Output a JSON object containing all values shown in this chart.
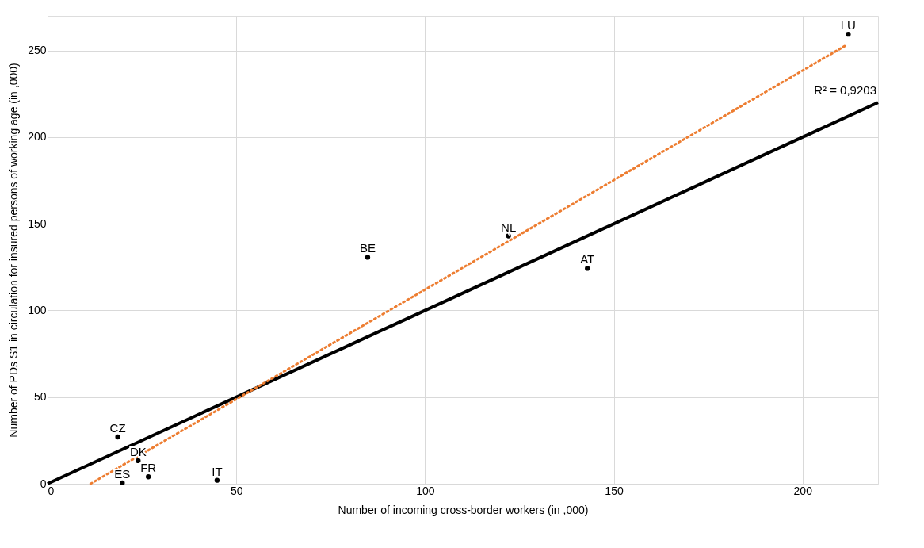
{
  "chart_data": {
    "type": "scatter",
    "xlabel": "Number of incoming cross-border workers (in ,000)",
    "ylabel": "Number of PDs S1 in circulation for insured persons of working age (in ,000)",
    "xlim": [
      0,
      220
    ],
    "ylim": [
      0,
      270
    ],
    "xticks": [
      0,
      50,
      100,
      150,
      200
    ],
    "yticks": [
      0,
      50,
      100,
      150,
      200,
      250
    ],
    "grid": true,
    "legend": false,
    "series": [
      {
        "marker": "circle",
        "color": "#000000",
        "x": [
          18.6,
          24.0,
          19.8,
          26.7,
          44.9,
          84.8,
          122.1,
          143.0,
          212.1
        ],
        "values": [
          27.0,
          13.3,
          0.5,
          4.0,
          2.0,
          130.7,
          143.0,
          124.3,
          259.4
        ],
        "value_labels": [
          "CZ",
          "DK",
          "ES",
          "FR",
          "IT",
          "BE",
          "NL",
          "AT",
          "LU"
        ]
      },
      {
        "type": "line",
        "color": "#000000",
        "line_style": "solid",
        "x": [
          0,
          220
        ],
        "values": [
          0,
          220
        ]
      },
      {
        "type": "line",
        "color": "#ed7d31",
        "line_style": "dotted",
        "x": [
          11.4,
          211.5
        ],
        "values": [
          0,
          253
        ]
      }
    ],
    "annotations": [
      "R² = 0,9203"
    ]
  }
}
